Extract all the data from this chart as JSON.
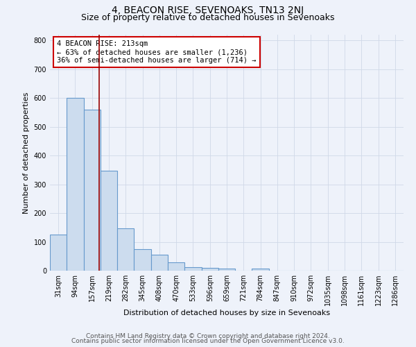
{
  "title": "4, BEACON RISE, SEVENOAKS, TN13 2NJ",
  "subtitle": "Size of property relative to detached houses in Sevenoaks",
  "xlabel": "Distribution of detached houses by size in Sevenoaks",
  "ylabel": "Number of detached properties",
  "bar_values": [
    125,
    600,
    560,
    348,
    148,
    75,
    55,
    30,
    12,
    10,
    7,
    0,
    7,
    0,
    0,
    0,
    0,
    0,
    0,
    0,
    0
  ],
  "bin_labels": [
    "31sqm",
    "94sqm",
    "157sqm",
    "219sqm",
    "282sqm",
    "345sqm",
    "408sqm",
    "470sqm",
    "533sqm",
    "596sqm",
    "659sqm",
    "721sqm",
    "784sqm",
    "847sqm",
    "910sqm",
    "972sqm",
    "1035sqm",
    "1098sqm",
    "1161sqm",
    "1223sqm",
    "1286sqm"
  ],
  "bar_color": "#ccdcee",
  "bar_edge_color": "#6699cc",
  "bar_linewidth": 0.8,
  "grid_color": "#d0d8e8",
  "background_color": "#eef2fa",
  "vline_color": "#990000",
  "ylim": [
    0,
    820
  ],
  "yticks": [
    0,
    100,
    200,
    300,
    400,
    500,
    600,
    700,
    800
  ],
  "annotation_line1": "4 BEACON RISE: 213sqm",
  "annotation_line2": "← 63% of detached houses are smaller (1,236)",
  "annotation_line3": "36% of semi-detached houses are larger (714) →",
  "annotation_box_color": "#ffffff",
  "annotation_box_edge_color": "#cc0000",
  "title_fontsize": 10,
  "subtitle_fontsize": 9,
  "axis_label_fontsize": 8,
  "tick_fontsize": 7,
  "annotation_fontsize": 7.5,
  "footer_line1": "Contains HM Land Registry data © Crown copyright and database right 2024.",
  "footer_line2": "Contains public sector information licensed under the Open Government Licence v3.0.",
  "footer_fontsize": 6.5
}
